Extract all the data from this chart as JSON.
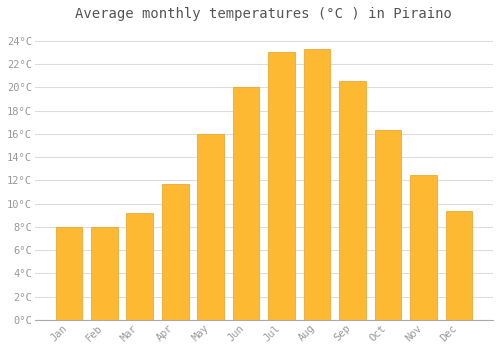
{
  "title": "Average monthly temperatures (°C ) in Piraino",
  "months": [
    "Jan",
    "Feb",
    "Mar",
    "Apr",
    "May",
    "Jun",
    "Jul",
    "Aug",
    "Sep",
    "Oct",
    "Nov",
    "Dec"
  ],
  "temperatures": [
    8.0,
    8.0,
    9.2,
    11.7,
    16.0,
    20.0,
    23.0,
    23.3,
    20.5,
    16.3,
    12.5,
    9.4
  ],
  "bar_color": "#FDB931",
  "bar_edge_color": "#E8A020",
  "background_color": "#FFFFFF",
  "grid_color": "#DDDDDD",
  "ylim": [
    0,
    25
  ],
  "yticks": [
    0,
    2,
    4,
    6,
    8,
    10,
    12,
    14,
    16,
    18,
    20,
    22,
    24
  ],
  "title_fontsize": 10,
  "tick_fontsize": 7.5,
  "font_family": "monospace"
}
